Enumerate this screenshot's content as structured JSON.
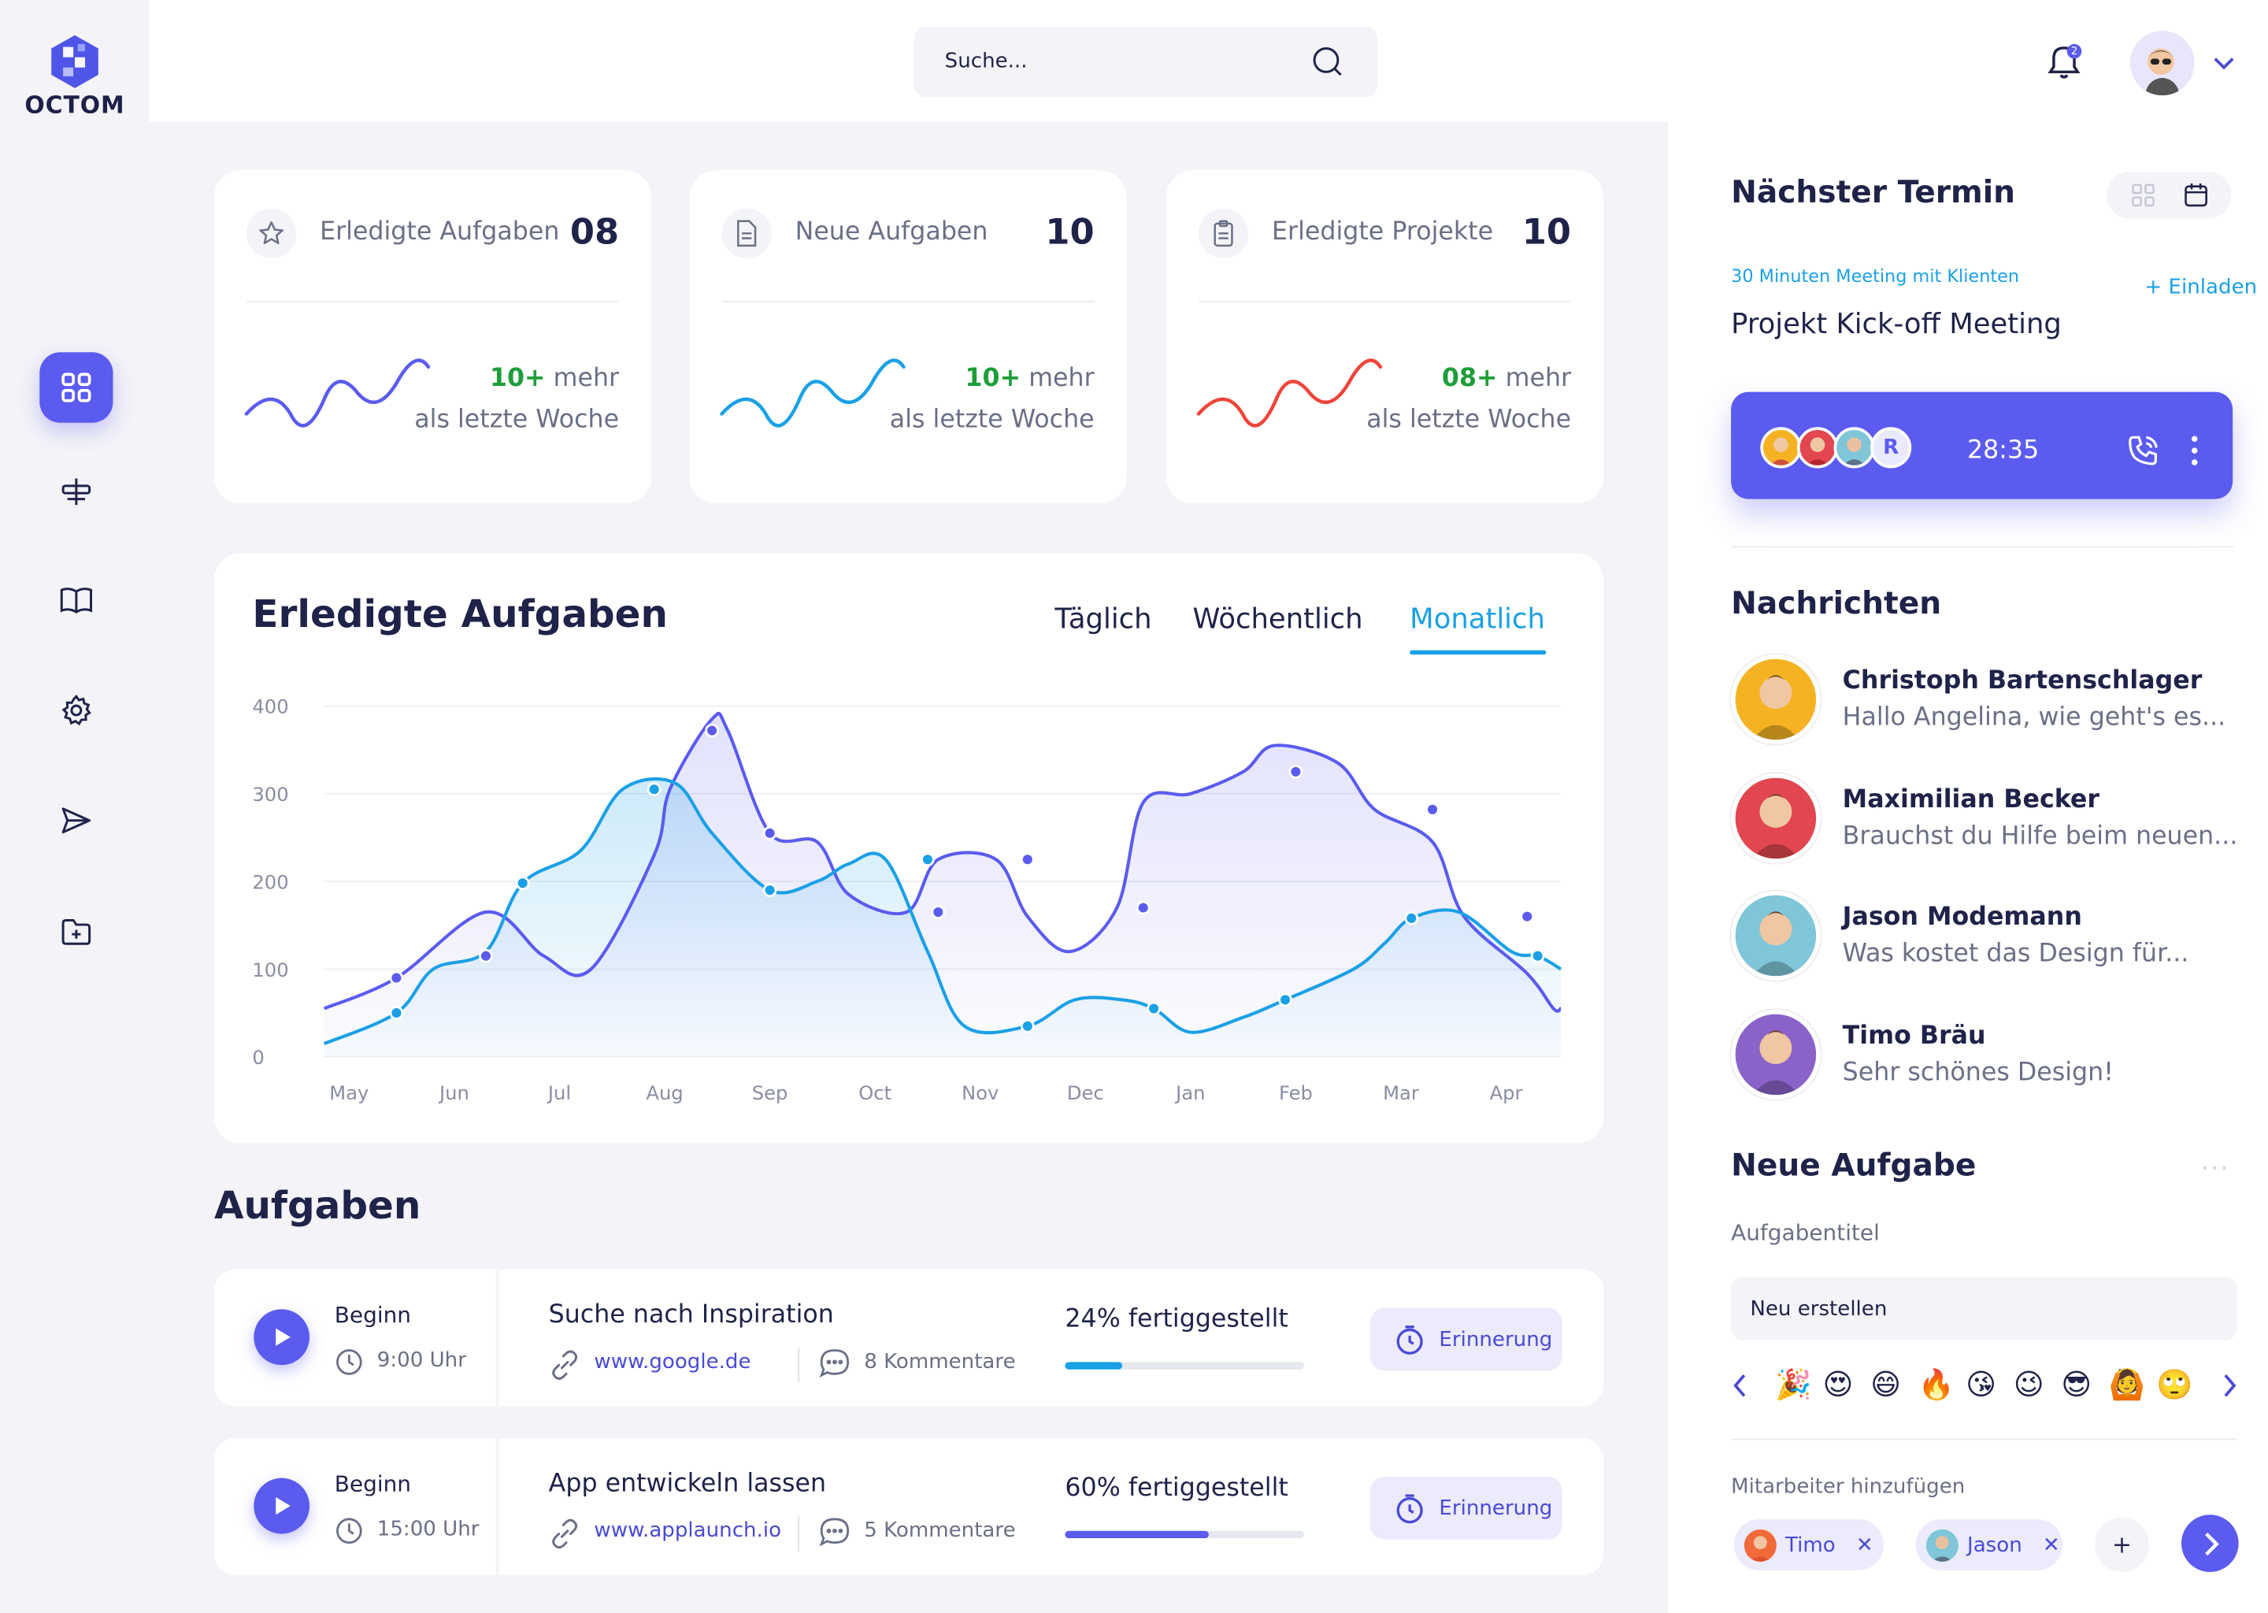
{
  "brand": {
    "name": "OCTOM",
    "accent": "#5b5bf0"
  },
  "search": {
    "placeholder": "Suche..."
  },
  "header": {
    "notifications_count": "2"
  },
  "nav": {
    "items": [
      "dashboard-icon",
      "tasks-icon",
      "book-icon",
      "settings-icon",
      "send-icon",
      "folder-add-icon"
    ]
  },
  "stats": [
    {
      "label": "Erledigte Aufgaben",
      "value": "08",
      "delta": "10+",
      "delta_suffix": "mehr",
      "sub": "als letzte Woche",
      "icon": "star-icon",
      "color": "#5b5bf0"
    },
    {
      "label": "Neue Aufgaben",
      "value": "10",
      "delta": "10+",
      "delta_suffix": "mehr",
      "sub": "als letzte Woche",
      "icon": "document-icon",
      "color": "#1aa0e6"
    },
    {
      "label": "Erledigte Projekte",
      "value": "10",
      "delta": "08+",
      "delta_suffix": "mehr",
      "sub": "als letzte Woche",
      "icon": "clipboard-icon",
      "color": "#f0453a"
    }
  ],
  "chart": {
    "title": "Erledigte Aufgaben",
    "tabs": [
      "Täglich",
      "Wöchentlich",
      "Monatlich"
    ],
    "active_tab": "Monatlich"
  },
  "chart_data": {
    "type": "area",
    "title": "Erledigte Aufgaben",
    "xlabel": "",
    "ylabel": "",
    "ylim": [
      0,
      400
    ],
    "yticks": [
      0,
      100,
      200,
      300,
      400
    ],
    "categories": [
      "May",
      "Jun",
      "Jul",
      "Aug",
      "Sep",
      "Oct",
      "Nov",
      "Dec",
      "Jan",
      "Feb",
      "Mar",
      "Apr"
    ],
    "grid": true,
    "series": [
      {
        "color": "#5b5bf0",
        "x": [
          0,
          0.45,
          1.3,
          1.85,
          2.3,
          2.9,
          3.05,
          3.45,
          3.6,
          4.0,
          4.45,
          4.75,
          5.3,
          5.6,
          6.15,
          6.45,
          6.85,
          7.3,
          7.55,
          8.0,
          8.5,
          8.8,
          9.4,
          9.75,
          10.3,
          10.6,
          11.2,
          11.45,
          11.65
        ],
        "y": [
          55,
          90,
          165,
          115,
          100,
          230,
          305,
          385,
          372,
          255,
          245,
          185,
          165,
          225,
          225,
          160,
          120,
          170,
          290,
          300,
          325,
          355,
          335,
          282,
          245,
          160,
          95,
          55,
          55
        ]
      },
      {
        "color": "#1aa0e6",
        "x": [
          0,
          0.45,
          0.8,
          1.3,
          1.65,
          2.2,
          2.6,
          3.1,
          3.45,
          4.0,
          4.45,
          4.75,
          5.1,
          5.5,
          5.85,
          6.45,
          6.9,
          7.35,
          7.65,
          8.0,
          8.5,
          8.9,
          9.55,
          9.85,
          10.1,
          10.55,
          11.05,
          11.3,
          11.65
        ],
        "y": [
          15,
          50,
          100,
          120,
          198,
          235,
          305,
          312,
          255,
          190,
          200,
          220,
          225,
          120,
          35,
          35,
          65,
          65,
          55,
          28,
          45,
          65,
          100,
          130,
          158,
          165,
          120,
          115,
          100
        ]
      }
    ],
    "markers": [
      {
        "series": 0,
        "x": 0.45,
        "y": 90
      },
      {
        "series": 0,
        "x": 1.3,
        "y": 115
      },
      {
        "series": 0,
        "x": 3.45,
        "y": 372
      },
      {
        "series": 0,
        "x": 4.0,
        "y": 255
      },
      {
        "series": 0,
        "x": 5.6,
        "y": 165
      },
      {
        "series": 0,
        "x": 6.45,
        "y": 225
      },
      {
        "series": 0,
        "x": 7.55,
        "y": 170
      },
      {
        "series": 0,
        "x": 9.0,
        "y": 325
      },
      {
        "series": 0,
        "x": 10.3,
        "y": 282
      },
      {
        "series": 0,
        "x": 11.2,
        "y": 160
      },
      {
        "series": 1,
        "x": 0.45,
        "y": 50
      },
      {
        "series": 1,
        "x": 1.65,
        "y": 198
      },
      {
        "series": 1,
        "x": 2.9,
        "y": 305
      },
      {
        "series": 1,
        "x": 4.0,
        "y": 190
      },
      {
        "series": 1,
        "x": 5.5,
        "y": 225
      },
      {
        "series": 1,
        "x": 6.45,
        "y": 35
      },
      {
        "series": 1,
        "x": 7.65,
        "y": 55
      },
      {
        "series": 1,
        "x": 8.9,
        "y": 65
      },
      {
        "series": 1,
        "x": 10.1,
        "y": 158
      },
      {
        "series": 1,
        "x": 11.3,
        "y": 115
      }
    ]
  },
  "tasks": {
    "title": "Aufgaben",
    "items": [
      {
        "start_label": "Beginn",
        "time": "9:00 Uhr",
        "name": "Suche nach Inspiration",
        "link": "www.google.de",
        "comments": "8 Kommentare",
        "progress_label": "24% fertiggestellt",
        "progress": 0.24,
        "progress_color": "#1aa0e6",
        "reminder": "Erinnerung"
      },
      {
        "start_label": "Beginn",
        "time": "15:00 Uhr",
        "name": "App entwickeln lassen",
        "link": "www.applaunch.io",
        "comments": "5 Kommentare",
        "progress_label": "60% fertiggestellt",
        "progress": 0.6,
        "progress_color": "#5b5bf0",
        "reminder": "Erinnerung"
      }
    ]
  },
  "appointment": {
    "title": "Nächster Termin",
    "subtitle": "30 Minuten Meeting mit Klienten",
    "invite": "+ Einladen",
    "meeting": "Projekt Kick-off Meeting",
    "timer": "28:35",
    "extra_participant": "R"
  },
  "messages": {
    "title": "Nachrichten",
    "items": [
      {
        "name": "Christoph Bartenschlager",
        "text": "Hallo Angelina, wie geht's es...",
        "avatar_bg": "#f5b324"
      },
      {
        "name": "Maximilian Becker",
        "text": "Brauchst du Hilfe beim neuen...",
        "avatar_bg": "#e2464f"
      },
      {
        "name": "Jason Modemann",
        "text": "Was kostet das Design für...",
        "avatar_bg": "#7fc6d8"
      },
      {
        "name": "Timo Bräu",
        "text": "Sehr schönes Design!",
        "avatar_bg": "#8a63c9"
      }
    ]
  },
  "new_task": {
    "title": "Neue Aufgabe",
    "more": "···",
    "field_label": "Aufgabentitel",
    "input_value": "Neu erstellen",
    "emojis": [
      "🎉",
      "😍",
      "😄",
      "🔥",
      "😘",
      "😉",
      "😎",
      "🙆",
      "🙄"
    ],
    "staff_label": "Mitarbeiter hinzufügen",
    "staff": [
      {
        "name": "Timo"
      },
      {
        "name": "Jason"
      }
    ],
    "add": "+"
  }
}
